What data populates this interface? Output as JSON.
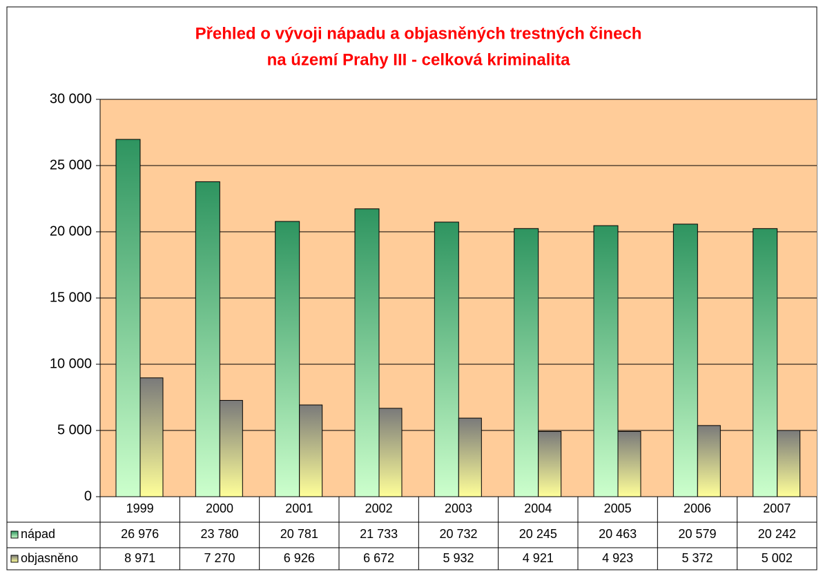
{
  "chart_data": {
    "type": "bar",
    "title": [
      "Přehled o vývoji nápadu a objasněných trestných činech",
      "na území Prahy III - celková kriminalita"
    ],
    "categories": [
      "1999",
      "2000",
      "2001",
      "2002",
      "2003",
      "2004",
      "2005",
      "2006",
      "2007"
    ],
    "series": [
      {
        "name": "nápad",
        "color": "#2e9460",
        "color_end": "#ccffcc",
        "values": [
          26976,
          23780,
          20781,
          21733,
          20732,
          20245,
          20463,
          20579,
          20242
        ],
        "value_labels": [
          "26 976",
          "23 780",
          "20 781",
          "21 733",
          "20 732",
          "20 245",
          "20 463",
          "20 579",
          "20 242"
        ]
      },
      {
        "name": "objasněno",
        "color": "#7a7a7a",
        "color_end": "#ffff99",
        "values": [
          8971,
          7270,
          6926,
          6672,
          5932,
          4921,
          4923,
          5372,
          5002
        ],
        "value_labels": [
          "8 971",
          "7 270",
          "6 926",
          "6 672",
          "5 932",
          "4 921",
          "4 923",
          "5 372",
          "5 002"
        ]
      }
    ],
    "ylim": [
      0,
      30000
    ],
    "yticks": [
      0,
      {
        "value": 5000,
        "label": "5 000"
      },
      {
        "value": 10000,
        "label": "10 000"
      },
      {
        "value": 15000,
        "label": "15 000"
      },
      {
        "value": 20000,
        "label": "20 000"
      },
      {
        "value": 25000,
        "label": "25 000"
      },
      {
        "value": 30000,
        "label": "30 000"
      }
    ],
    "grid": true,
    "title_color": "#ff0000",
    "plot_background": "#ffcc99"
  }
}
